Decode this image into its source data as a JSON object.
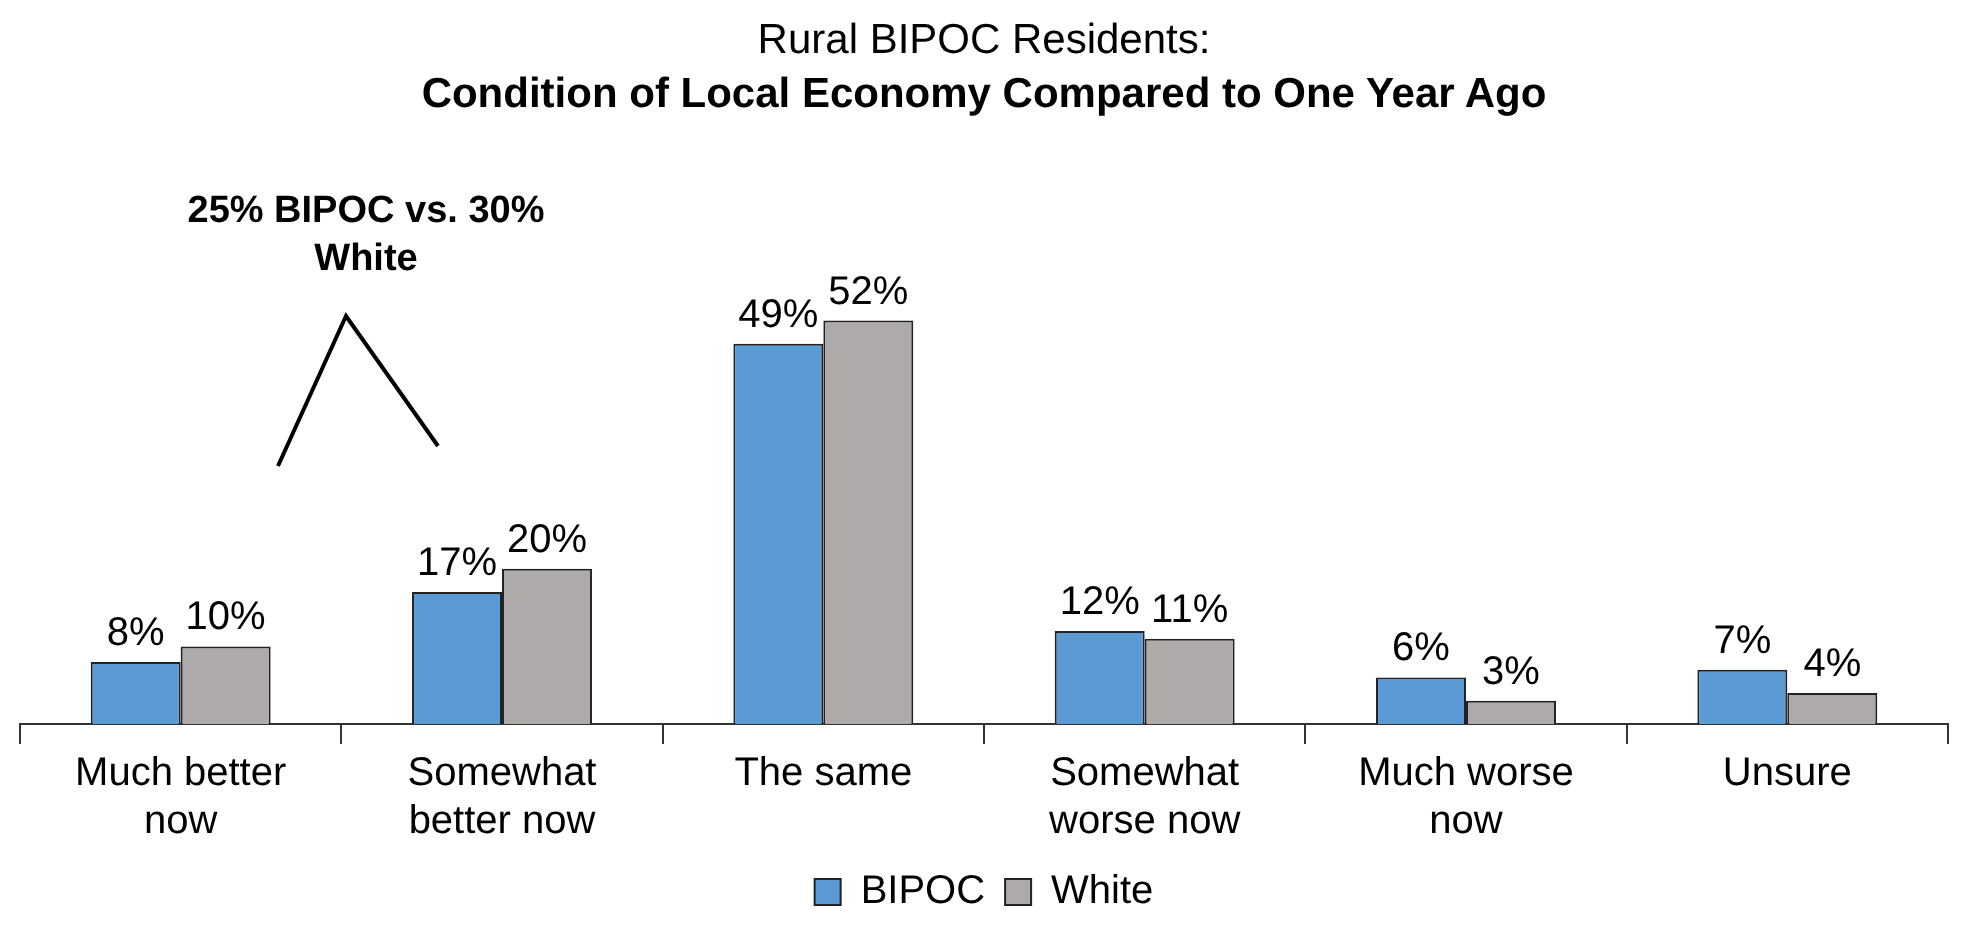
{
  "chart_data": {
    "type": "bar",
    "title": "Rural BIPOC Residents:",
    "subtitle": "Condition of Local Economy Compared to One Year Ago",
    "categories": [
      "Much better now",
      "Somewhat better now",
      "The same",
      "Somewhat worse now",
      "Much worse now",
      "Unsure"
    ],
    "series": [
      {
        "name": "BIPOC",
        "color": "#5b9bd5",
        "values": [
          8,
          17,
          49,
          12,
          6,
          7
        ],
        "value_labels": [
          "8%",
          "17%",
          "49%",
          "12%",
          "6%",
          "7%"
        ]
      },
      {
        "name": "White",
        "color": "#aeaaaa",
        "values": [
          10,
          20,
          52,
          11,
          3,
          4
        ],
        "value_labels": [
          "10%",
          "20%",
          "52%",
          "11%",
          "3%",
          "4%"
        ]
      }
    ],
    "annotations": [
      "25% BIPOC vs. 30% White"
    ],
    "legend": "bottom"
  }
}
